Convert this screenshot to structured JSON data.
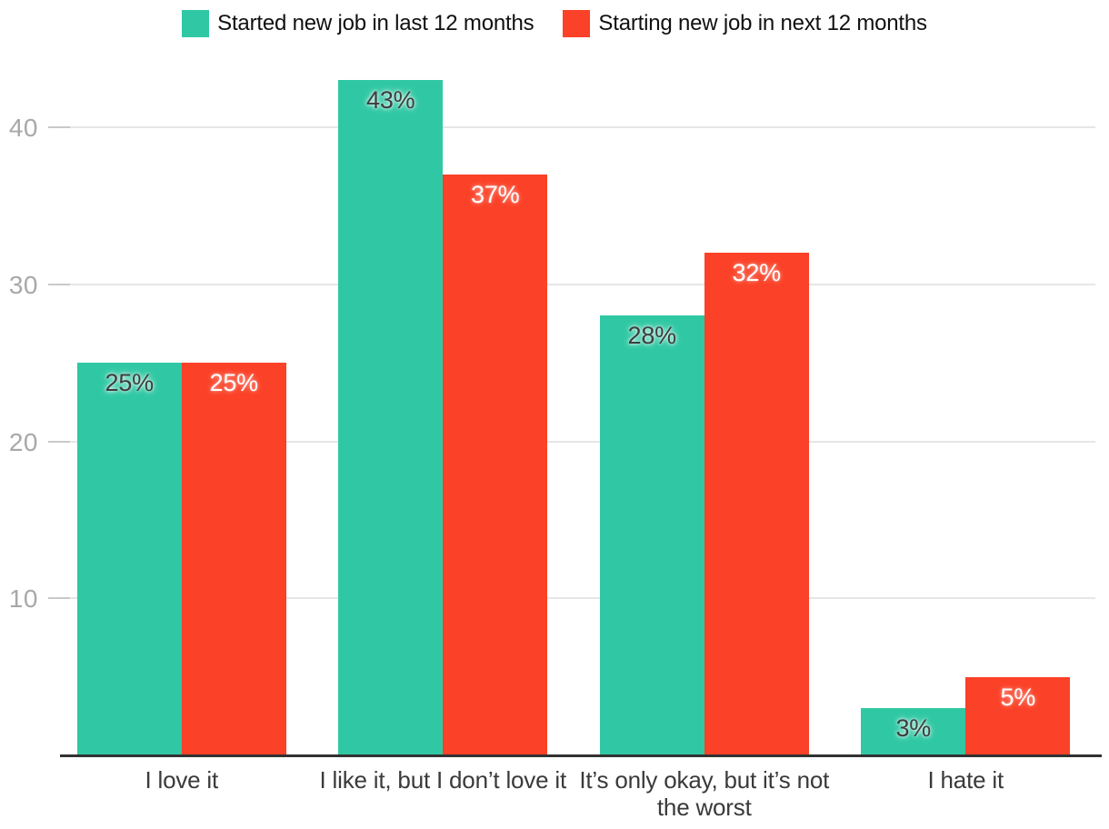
{
  "chart_data": {
    "type": "bar",
    "categories": [
      "I love it",
      "I like it, but I don’t love it",
      "It’s only okay, but it’s not the worst",
      "I hate it"
    ],
    "series": [
      {
        "name": "Started new job in last 12 months",
        "color": "#30C8A4",
        "label_color": "#3D3D3D",
        "values": [
          25,
          43,
          28,
          3
        ],
        "value_labels": [
          "25%",
          "43%",
          "28%",
          "3%"
        ]
      },
      {
        "name": "Starting new job in next 12 months",
        "color": "#FB4127",
        "label_color": "#FFFFFF",
        "values": [
          25,
          37,
          32,
          5
        ],
        "value_labels": [
          "25%",
          "37%",
          "32%",
          "5%"
        ]
      }
    ],
    "y_ticks": [
      "10",
      "20",
      "30",
      "40"
    ],
    "ylim": [
      0,
      45
    ],
    "grid": true,
    "legend_position": "top",
    "styles": {
      "background": "#FFFFFF",
      "grid_color": "#E6E6E6",
      "tick_dash_color": "#C9C9C9",
      "axis_color": "#323232",
      "tick_label_color": "#A8A8A8",
      "category_label_color": "#3A3A3A",
      "legend_text_color": "#101010"
    }
  }
}
